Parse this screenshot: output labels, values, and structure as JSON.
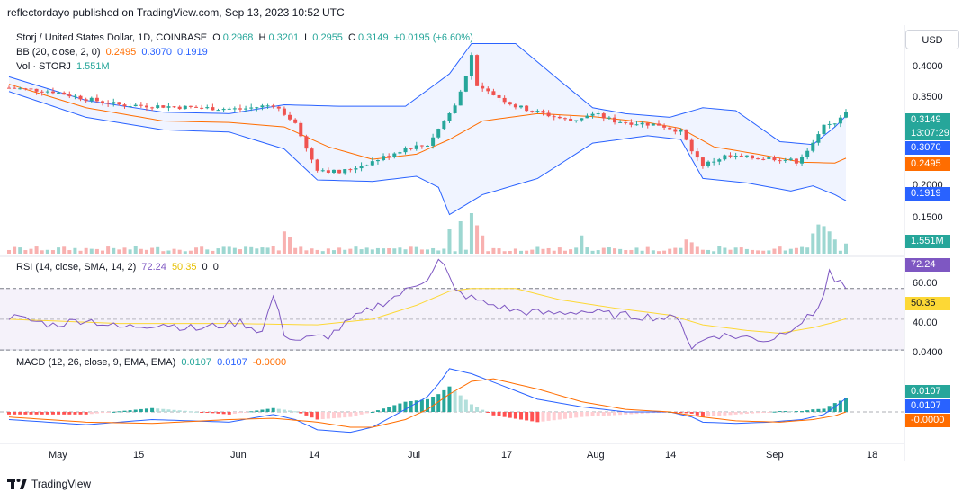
{
  "header": "reflectordayo published on TradingView.com, Sep 13, 2023 10:52 UTC",
  "footer": {
    "brand": "TradingView"
  },
  "currency_button": "USD",
  "legend_main": {
    "symbol": "Storj / United States Dollar, 1D, COINBASE",
    "o_label": "O",
    "o": "0.2968",
    "h_label": "H",
    "h": "0.3201",
    "l_label": "L",
    "l": "0.2955",
    "c_label": "C",
    "c": "0.3149",
    "change": "+0.0195 (+6.60%)"
  },
  "legend_bb": {
    "label": "BB (20, close, 2, 0)",
    "basis": "0.2495",
    "upper": "0.3070",
    "lower": "0.1919"
  },
  "legend_vol": {
    "label": "Vol · STORJ",
    "value": "1.551M"
  },
  "legend_rsi": {
    "label": "RSI (14, close, SMA, 14, 2)",
    "rsi": "72.24",
    "sma": "50.35",
    "z1": "0",
    "z2": "0"
  },
  "legend_macd": {
    "label": "MACD (12, 26, close, 9, EMA, EMA)",
    "hist": "0.0107",
    "macd": "0.0107",
    "signal": "-0.0000"
  },
  "price_axis": {
    "ticks": [
      "0.4000",
      "0.3500",
      "0.2000",
      "0.1500"
    ],
    "last_price": "0.3149",
    "countdown": "13:07:29",
    "bb_upper": "0.3070",
    "bb_basis": "0.2495",
    "bb_lower": "0.1919",
    "volume": "1.551M"
  },
  "rsi_axis": {
    "ticks": [
      "60.00",
      "40.00"
    ],
    "rsi": "72.24",
    "sma": "50.35"
  },
  "macd_axis": {
    "ticks": [
      "0.0400"
    ],
    "hist": "0.0107",
    "macd": "0.0107",
    "signal": "-0.0000"
  },
  "time_axis": [
    "May",
    "15",
    "Jun",
    "14",
    "Jul",
    "17",
    "Aug",
    "14",
    "Sep",
    "18"
  ],
  "colors": {
    "up": "#26a69a",
    "down": "#ef5350",
    "bb_upper": "#2962ff",
    "bb_basis": "#ff6d00",
    "rsi": "#7e57c2",
    "rsi_sma": "#fdd835",
    "macd": "#2962ff",
    "signal": "#ff6d00"
  },
  "chart_data": {
    "type": "candlestick",
    "title": "Storj / United States Dollar, 1D, COINBASE",
    "ylim": [
      0.12,
      0.43
    ],
    "close_anchors": [
      [
        0,
        0.345
      ],
      [
        8,
        0.34
      ],
      [
        14,
        0.33
      ],
      [
        20,
        0.322
      ],
      [
        28,
        0.32
      ],
      [
        34,
        0.318
      ],
      [
        42,
        0.316
      ],
      [
        48,
        0.322
      ],
      [
        50,
        0.31
      ],
      [
        52,
        0.3
      ],
      [
        54,
        0.262
      ],
      [
        56,
        0.235
      ],
      [
        60,
        0.23
      ],
      [
        66,
        0.245
      ],
      [
        72,
        0.263
      ],
      [
        76,
        0.268
      ],
      [
        79,
        0.3
      ],
      [
        81,
        0.32
      ],
      [
        83,
        0.36
      ],
      [
        84,
        0.39
      ],
      [
        85,
        0.345
      ],
      [
        88,
        0.336
      ],
      [
        92,
        0.32
      ],
      [
        96,
        0.312
      ],
      [
        102,
        0.3
      ],
      [
        106,
        0.31
      ],
      [
        110,
        0.3
      ],
      [
        114,
        0.297
      ],
      [
        118,
        0.295
      ],
      [
        122,
        0.286
      ],
      [
        124,
        0.26
      ],
      [
        126,
        0.24
      ],
      [
        130,
        0.252
      ],
      [
        135,
        0.25
      ],
      [
        140,
        0.249
      ],
      [
        143,
        0.245
      ],
      [
        146,
        0.268
      ],
      [
        148,
        0.292
      ],
      [
        150,
        0.298
      ],
      [
        152,
        0.314
      ]
    ],
    "bb_upper_anchors": [
      [
        0,
        0.36
      ],
      [
        14,
        0.328
      ],
      [
        28,
        0.312
      ],
      [
        40,
        0.31
      ],
      [
        50,
        0.322
      ],
      [
        60,
        0.32
      ],
      [
        72,
        0.32
      ],
      [
        80,
        0.364
      ],
      [
        84,
        0.405
      ],
      [
        92,
        0.405
      ],
      [
        100,
        0.355
      ],
      [
        106,
        0.318
      ],
      [
        112,
        0.31
      ],
      [
        120,
        0.305
      ],
      [
        126,
        0.318
      ],
      [
        132,
        0.314
      ],
      [
        140,
        0.272
      ],
      [
        146,
        0.268
      ],
      [
        150,
        0.292
      ],
      [
        152,
        0.307
      ]
    ],
    "bb_basis_anchors": [
      [
        0,
        0.35
      ],
      [
        14,
        0.318
      ],
      [
        28,
        0.3
      ],
      [
        40,
        0.298
      ],
      [
        50,
        0.292
      ],
      [
        58,
        0.265
      ],
      [
        66,
        0.248
      ],
      [
        74,
        0.255
      ],
      [
        80,
        0.275
      ],
      [
        86,
        0.3
      ],
      [
        96,
        0.31
      ],
      [
        106,
        0.306
      ],
      [
        116,
        0.298
      ],
      [
        122,
        0.29
      ],
      [
        128,
        0.265
      ],
      [
        136,
        0.255
      ],
      [
        144,
        0.244
      ],
      [
        150,
        0.243
      ],
      [
        152,
        0.2495
      ]
    ],
    "bb_lower_anchors": [
      [
        0,
        0.34
      ],
      [
        14,
        0.305
      ],
      [
        28,
        0.288
      ],
      [
        40,
        0.285
      ],
      [
        50,
        0.262
      ],
      [
        56,
        0.22
      ],
      [
        66,
        0.218
      ],
      [
        74,
        0.225
      ],
      [
        78,
        0.21
      ],
      [
        80,
        0.173
      ],
      [
        86,
        0.2
      ],
      [
        96,
        0.222
      ],
      [
        106,
        0.27
      ],
      [
        116,
        0.28
      ],
      [
        122,
        0.275
      ],
      [
        126,
        0.222
      ],
      [
        134,
        0.216
      ],
      [
        142,
        0.205
      ],
      [
        146,
        0.212
      ],
      [
        150,
        0.2
      ],
      [
        152,
        0.1919
      ]
    ],
    "rsi_anchors": [
      [
        0,
        52
      ],
      [
        8,
        46
      ],
      [
        14,
        50
      ],
      [
        20,
        44
      ],
      [
        28,
        47
      ],
      [
        34,
        43
      ],
      [
        42,
        48
      ],
      [
        46,
        41
      ],
      [
        48,
        67
      ],
      [
        50,
        40
      ],
      [
        52,
        35
      ],
      [
        58,
        38
      ],
      [
        62,
        49
      ],
      [
        66,
        58
      ],
      [
        72,
        70
      ],
      [
        76,
        80
      ],
      [
        78,
        92
      ],
      [
        79,
        88
      ],
      [
        81,
        70
      ],
      [
        86,
        62
      ],
      [
        92,
        56
      ],
      [
        98,
        54
      ],
      [
        104,
        56
      ],
      [
        110,
        53
      ],
      [
        116,
        52
      ],
      [
        122,
        50
      ],
      [
        123,
        38
      ],
      [
        124,
        30
      ],
      [
        128,
        39
      ],
      [
        134,
        37
      ],
      [
        138,
        35
      ],
      [
        142,
        44
      ],
      [
        146,
        53
      ],
      [
        148,
        68
      ],
      [
        149,
        84
      ],
      [
        150,
        78
      ],
      [
        152,
        72
      ]
    ],
    "rsi_sma_anchors": [
      [
        0,
        50
      ],
      [
        20,
        47
      ],
      [
        40,
        47
      ],
      [
        56,
        46
      ],
      [
        66,
        50
      ],
      [
        74,
        60
      ],
      [
        80,
        70
      ],
      [
        84,
        72
      ],
      [
        92,
        72
      ],
      [
        100,
        64
      ],
      [
        110,
        58
      ],
      [
        120,
        53
      ],
      [
        126,
        46
      ],
      [
        134,
        42
      ],
      [
        140,
        40
      ],
      [
        146,
        44
      ],
      [
        150,
        48
      ],
      [
        152,
        50.35
      ]
    ],
    "macd_anchors": [
      [
        0,
        -0.006
      ],
      [
        14,
        -0.01
      ],
      [
        26,
        -0.006
      ],
      [
        40,
        -0.008
      ],
      [
        48,
        -0.002
      ],
      [
        52,
        -0.006
      ],
      [
        56,
        -0.014
      ],
      [
        62,
        -0.016
      ],
      [
        66,
        -0.012
      ],
      [
        72,
        0.002
      ],
      [
        76,
        0.012
      ],
      [
        78,
        0.022
      ],
      [
        80,
        0.034
      ],
      [
        84,
        0.03
      ],
      [
        90,
        0.02
      ],
      [
        96,
        0.01
      ],
      [
        104,
        0.004
      ],
      [
        112,
        0.0
      ],
      [
        120,
        0.0
      ],
      [
        124,
        -0.004
      ],
      [
        126,
        -0.008
      ],
      [
        132,
        -0.009
      ],
      [
        138,
        -0.008
      ],
      [
        144,
        -0.006
      ],
      [
        148,
        -0.002
      ],
      [
        150,
        0.004
      ],
      [
        152,
        0.0107
      ]
    ],
    "signal_anchors": [
      [
        0,
        -0.004
      ],
      [
        14,
        -0.008
      ],
      [
        26,
        -0.009
      ],
      [
        40,
        -0.006
      ],
      [
        48,
        -0.005
      ],
      [
        56,
        -0.008
      ],
      [
        62,
        -0.012
      ],
      [
        66,
        -0.012
      ],
      [
        72,
        -0.006
      ],
      [
        76,
        0.002
      ],
      [
        80,
        0.014
      ],
      [
        84,
        0.024
      ],
      [
        88,
        0.026
      ],
      [
        96,
        0.018
      ],
      [
        104,
        0.008
      ],
      [
        112,
        0.002
      ],
      [
        120,
        0.0
      ],
      [
        126,
        -0.004
      ],
      [
        132,
        -0.007
      ],
      [
        140,
        -0.008
      ],
      [
        146,
        -0.006
      ],
      [
        150,
        -0.003
      ],
      [
        152,
        0.0
      ]
    ],
    "volume_spikes": [
      [
        50,
        0.55
      ],
      [
        51,
        0.4
      ],
      [
        80,
        0.6
      ],
      [
        82,
        0.8
      ],
      [
        84,
        1.0
      ],
      [
        85,
        0.7
      ],
      [
        86,
        0.45
      ],
      [
        104,
        0.45
      ],
      [
        123,
        0.35
      ],
      [
        124,
        0.28
      ],
      [
        146,
        0.5
      ],
      [
        147,
        0.72
      ],
      [
        148,
        0.68
      ],
      [
        149,
        0.55
      ],
      [
        150,
        0.35
      ],
      [
        152,
        0.25
      ]
    ]
  }
}
